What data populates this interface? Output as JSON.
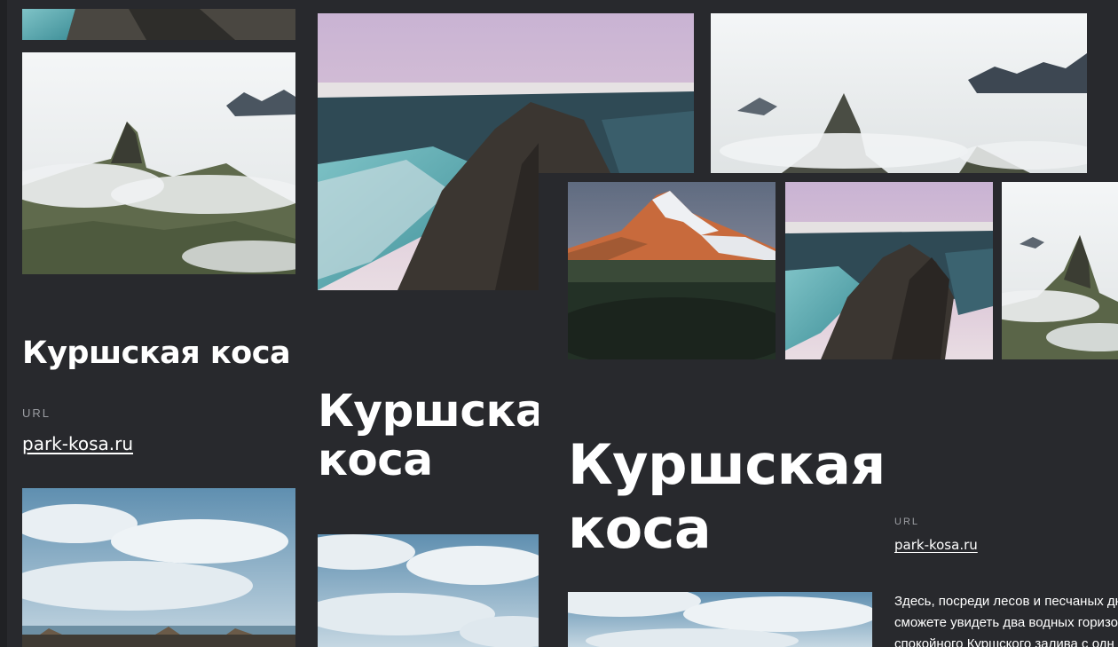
{
  "site": {
    "title": "Куршская коса",
    "title_line1": "Куршская",
    "title_line2": "коса",
    "url_label": "URL",
    "url": "park-kosa.ru",
    "description": [
      "Здесь, посреди лесов и песчаных дю",
      "сможете увидеть два водных горизо",
      "спокойного Куршского залива с одн"
    ]
  },
  "images": {
    "mountain_fog": "foggy-peak-photo",
    "coast_river": "coastal-cliff-photo",
    "volcano": "volcano-photo",
    "sky_clouds": "cloudy-sky-photo",
    "beach": "beach-driftwood-photo"
  },
  "colors": {
    "background": "#28292d",
    "text": "#ffffff",
    "muted": "#9c9ea3"
  }
}
